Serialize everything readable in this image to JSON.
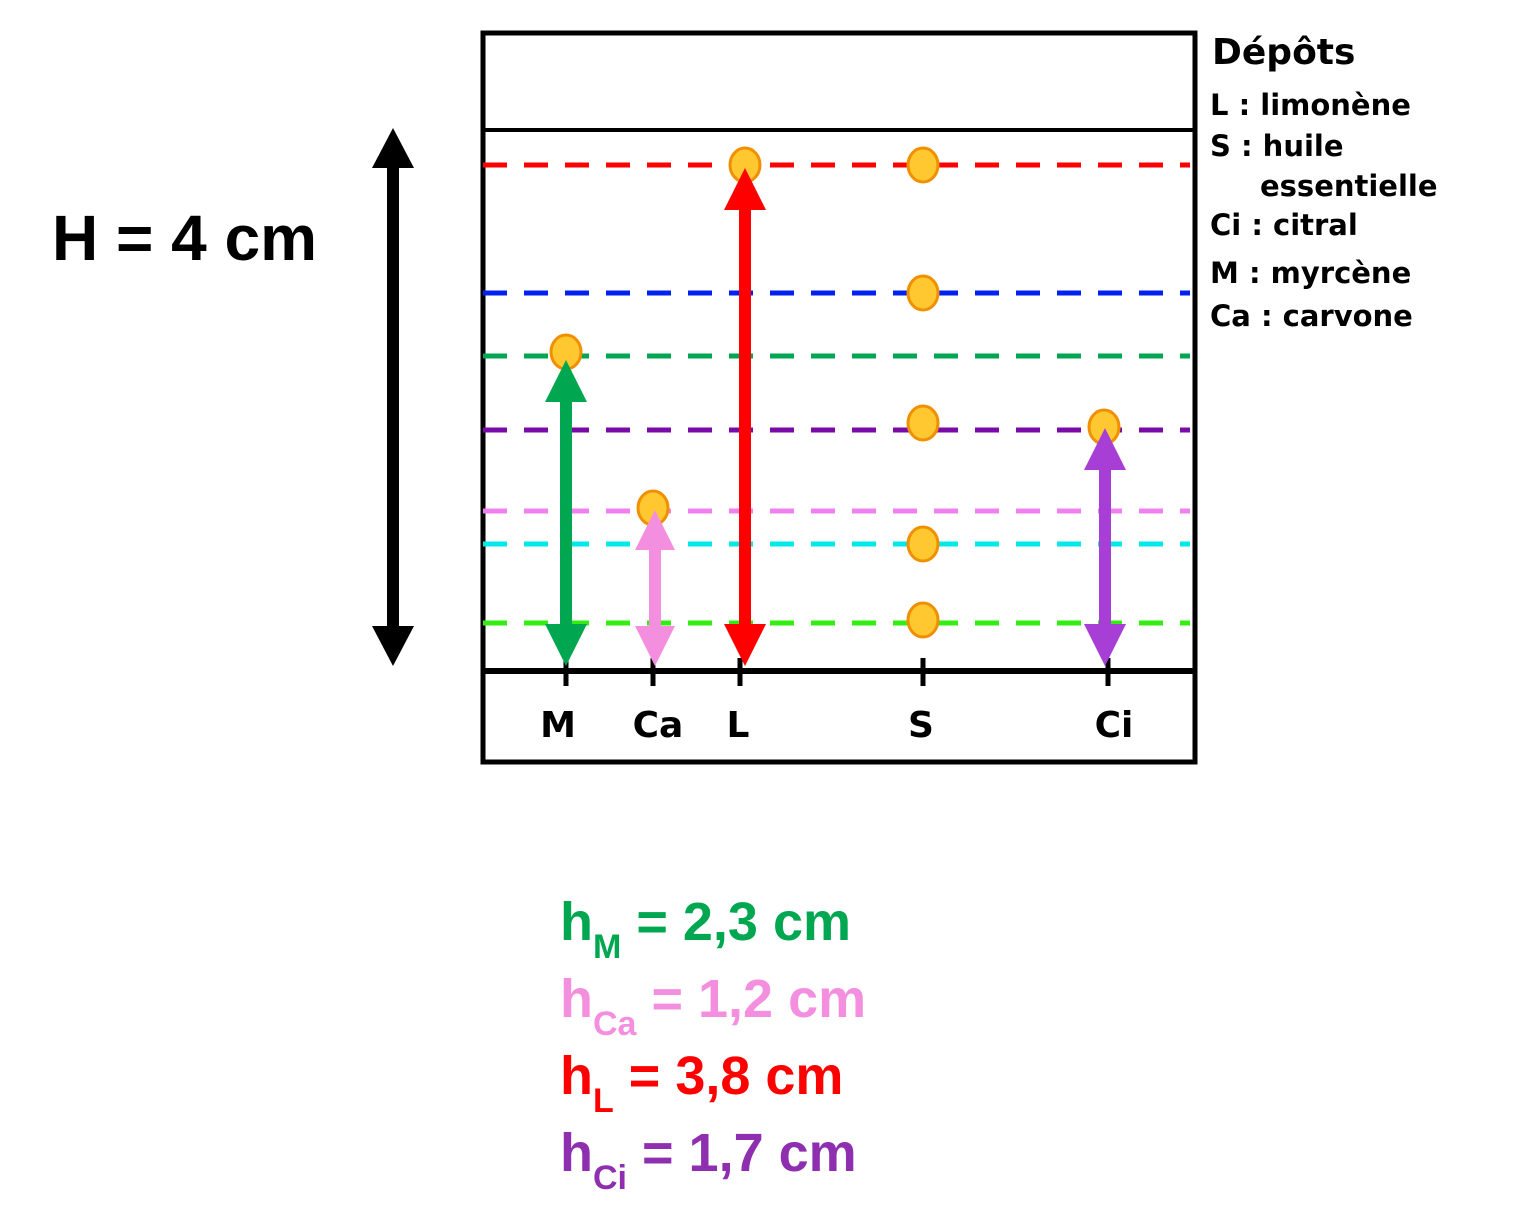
{
  "height_label": "H = 4 cm",
  "legend": {
    "title": "Dépôts",
    "lines": [
      "L : limonène",
      "S : huile",
      "essentielle",
      "Ci : citral",
      "M : myrcène",
      "Ca : carvone"
    ]
  },
  "lanes": [
    "M",
    "Ca",
    "L",
    "S",
    "Ci"
  ],
  "results": [
    {
      "symbol": "h",
      "sub": "M",
      "rest": " = 2,3 cm"
    },
    {
      "symbol": "h",
      "sub": "Ca",
      "rest": " = 1,2 cm"
    },
    {
      "symbol": "h",
      "sub": "L",
      "rest": " = 3,8 cm"
    },
    {
      "symbol": "h",
      "sub": "Ci",
      "rest": " = 1,7 cm"
    }
  ]
}
